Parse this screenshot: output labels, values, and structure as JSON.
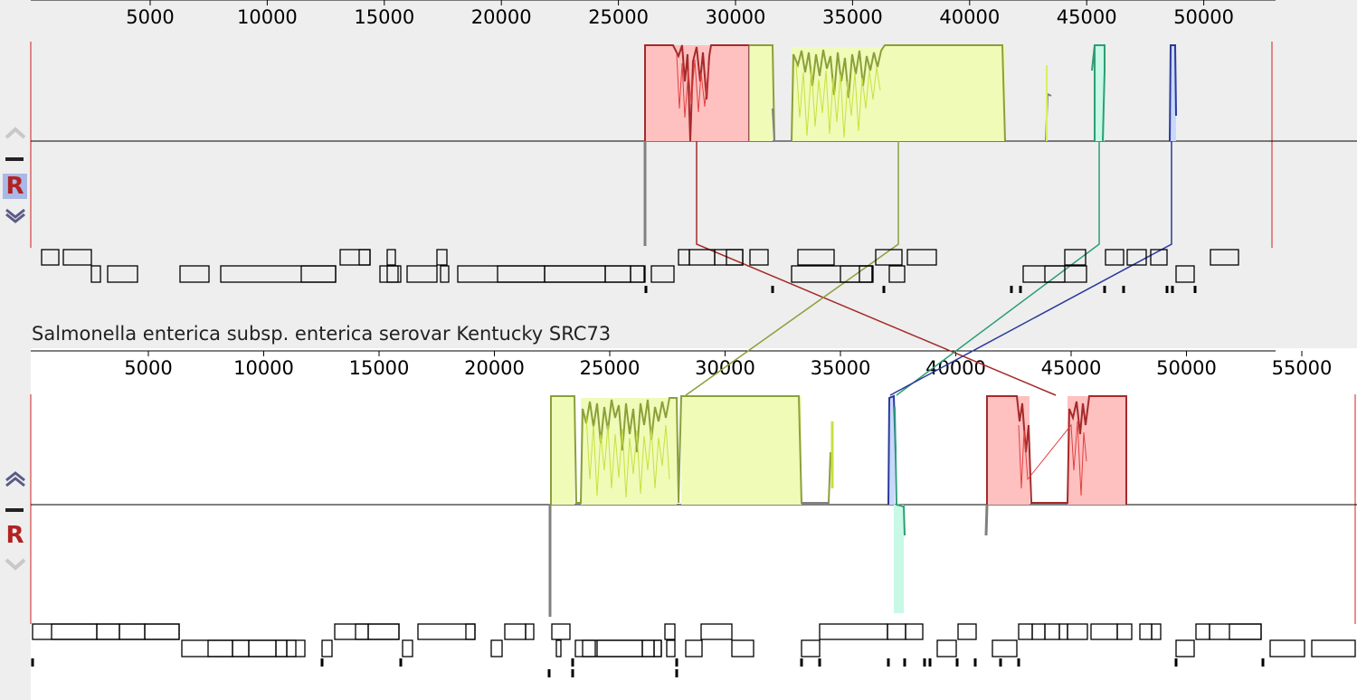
{
  "top_panel": {
    "ruler_ticks": [
      "5000",
      "10000",
      "15000",
      "20000",
      "25000",
      "30000",
      "35000",
      "40000",
      "45000",
      "50000"
    ],
    "controls": {
      "up_icon": "chevron-up-icon",
      "minus_icon": "minus-icon",
      "reset_label": "R",
      "down_icon": "chevron-down-icon"
    }
  },
  "bottom_panel": {
    "genome_name": "Salmonella enterica subsp. enterica serovar Kentucky SRC73",
    "ruler_ticks": [
      "5000",
      "10000",
      "15000",
      "20000",
      "25000",
      "30000",
      "35000",
      "40000",
      "45000",
      "50000",
      "55000"
    ],
    "controls": {
      "up_icon": "chevron-up-icon",
      "minus_icon": "minus-icon",
      "reset_label": "R",
      "down_icon": "chevron-down-icon"
    }
  },
  "colors": {
    "lcb_red": "#a52a2a",
    "lcb_red_fill": "#ffc0c0",
    "lcb_green": "#8aa03a",
    "lcb_green_fill": "#f0fbb8",
    "lcb_teal": "#2e9e73",
    "lcb_teal_fill": "#c8f8e6",
    "lcb_blue": "#2a3a9a",
    "lcb_blue_fill": "#c8d8ff",
    "unaligned": "#808080",
    "panel_bg": "#eeeeee"
  }
}
